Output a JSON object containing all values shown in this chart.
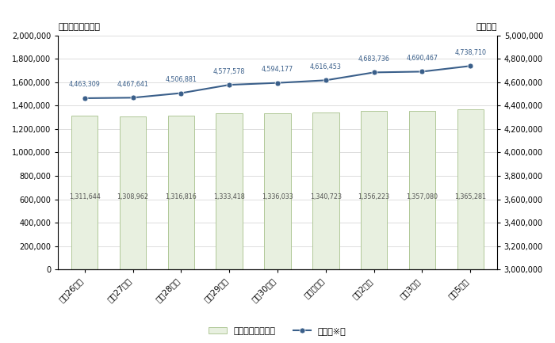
{
  "categories": [
    "平成26年度",
    "平成27年度",
    "平成28年度",
    "平成29年度",
    "平成30年度",
    "令和元年度",
    "令和2年度",
    "令和3年度",
    "令和5年度"
  ],
  "bar_values": [
    1311644,
    1308962,
    1316816,
    1333418,
    1336033,
    1340723,
    1356223,
    1357080,
    1365281
  ],
  "line_values": [
    4463309,
    4467641,
    4506881,
    4577578,
    4594177,
    4616453,
    4683736,
    4690467,
    4738710
  ],
  "bar_color": "#e8f0e0",
  "bar_edge_color": "#b0c898",
  "line_color": "#3a5f8a",
  "marker_color": "#3a5f8a",
  "left_ylabel": "初年度納入額：円",
  "right_ylabel": "総額：円",
  "left_ylim": [
    0,
    2000000
  ],
  "right_ylim": [
    3000000,
    5000000
  ],
  "left_yticks": [
    0,
    200000,
    400000,
    600000,
    800000,
    1000000,
    1200000,
    1400000,
    1600000,
    1800000,
    2000000
  ],
  "right_yticks": [
    3000000,
    3200000,
    3400000,
    3600000,
    3800000,
    4000000,
    4200000,
    4400000,
    4600000,
    4800000,
    5000000
  ],
  "legend_bar": "初年度学生納付金",
  "legend_line": "総額（※）",
  "bar_label_color": "#555555",
  "line_label_color": "#3a5f8a",
  "grid_color": "#d0d0d0",
  "bg_color": "#ffffff"
}
